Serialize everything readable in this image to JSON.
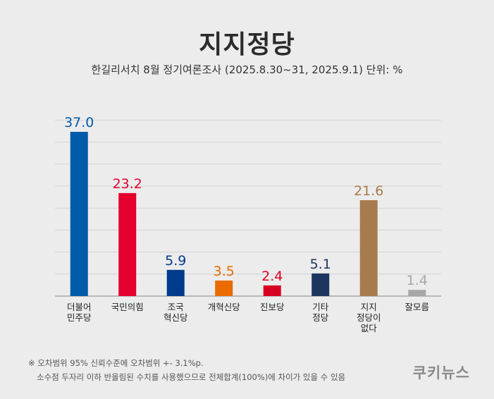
{
  "chart_data": {
    "type": "bar",
    "title": "지지정당",
    "subtitle": "한길리서치 8월 정기여론조사 (2025.8.30~31, 2025.9.1) 단위: %",
    "categories": [
      [
        "더불어",
        "민주당"
      ],
      [
        "국민의힘"
      ],
      [
        "조국",
        "혁신당"
      ],
      [
        "개혁신당"
      ],
      [
        "진보당"
      ],
      [
        "기타",
        "정당"
      ],
      [
        "지지",
        "정당이",
        "없다"
      ],
      [
        "잘모름"
      ]
    ],
    "values": [
      37.0,
      23.2,
      5.9,
      3.5,
      2.4,
      5.1,
      21.6,
      1.4
    ],
    "value_labels": [
      "37.0",
      "23.2",
      "5.9",
      "3.5",
      "2.4",
      "5.1",
      "21.6",
      "1.4"
    ],
    "colors": [
      "#005ba8",
      "#e5002d",
      "#003a8c",
      "#ea6b00",
      "#d80021",
      "#1c3660",
      "#a67c4e",
      "#a7a7a7"
    ],
    "ylim": [
      0,
      37
    ],
    "grid": true,
    "legend": "none"
  },
  "notes": {
    "line1": "※ 오차범위 95% 신뢰수준에 오차범위 +- 3.1%p.",
    "line2": "소수점 두자리 이하 반올림된 수치를 사용했으므로 전체합계(100%)에 차이가 있을 수 있음"
  },
  "brand": "쿠키뉴스"
}
